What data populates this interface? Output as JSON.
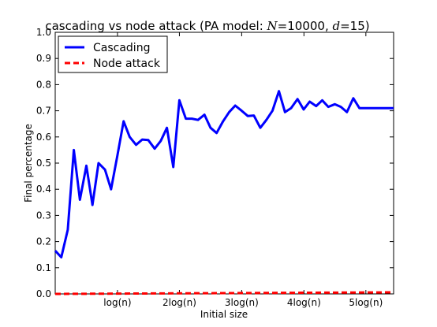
{
  "chart_data": {
    "type": "line",
    "title": {
      "prefix": "cascading vs node attack (PA model: ",
      "n_sym": "N",
      "n_eq": "=10000, ",
      "d_sym": "d",
      "d_eq": "=15)"
    },
    "xlabel": "Initial size",
    "ylabel": "Final percentage",
    "xlim": [
      0,
      1
    ],
    "ylim": [
      0.0,
      1.0
    ],
    "yticks": [
      "0.0",
      "0.1",
      "0.2",
      "0.3",
      "0.4",
      "0.5",
      "0.6",
      "0.7",
      "0.8",
      "0.9",
      "1.0"
    ],
    "xticks": [
      {
        "pos": 0.184,
        "label": "log(n)"
      },
      {
        "pos": 0.367,
        "label": "2log(n)"
      },
      {
        "pos": 0.551,
        "label": "3log(n)"
      },
      {
        "pos": 0.735,
        "label": "4log(n)"
      },
      {
        "pos": 0.918,
        "label": "5log(n)"
      }
    ],
    "legend_position": "top-left",
    "series": [
      {
        "name": "Cascading",
        "color": "#0000ff",
        "style": "solid",
        "x": [
          0.0,
          0.018,
          0.037,
          0.055,
          0.073,
          0.092,
          0.11,
          0.128,
          0.147,
          0.165,
          0.184,
          0.202,
          0.22,
          0.239,
          0.257,
          0.275,
          0.294,
          0.312,
          0.33,
          0.349,
          0.367,
          0.386,
          0.404,
          0.422,
          0.441,
          0.459,
          0.477,
          0.496,
          0.514,
          0.532,
          0.551,
          0.569,
          0.587,
          0.606,
          0.624,
          0.642,
          0.661,
          0.679,
          0.697,
          0.716,
          0.734,
          0.752,
          0.771,
          0.789,
          0.807,
          0.826,
          0.844,
          0.862,
          0.881,
          0.899,
          0.917,
          0.936,
          0.954,
          0.972,
          0.991,
          1.0
        ],
        "y": [
          0.165,
          0.14,
          0.245,
          0.55,
          0.36,
          0.49,
          0.34,
          0.5,
          0.475,
          0.4,
          0.53,
          0.66,
          0.6,
          0.57,
          0.59,
          0.588,
          0.555,
          0.585,
          0.635,
          0.485,
          0.74,
          0.67,
          0.67,
          0.665,
          0.685,
          0.635,
          0.615,
          0.66,
          0.695,
          0.72,
          0.7,
          0.68,
          0.682,
          0.635,
          0.665,
          0.7,
          0.775,
          0.695,
          0.71,
          0.745,
          0.705,
          0.735,
          0.718,
          0.74,
          0.715,
          0.725,
          0.715,
          0.695,
          0.748,
          0.71,
          0.71,
          0.71,
          0.71,
          0.71,
          0.71,
          0.71
        ]
      },
      {
        "name": "Node attack",
        "color": "#ff0000",
        "style": "dashed",
        "x": [
          0.0,
          1.0
        ],
        "y": [
          0.0,
          0.006
        ]
      }
    ]
  }
}
